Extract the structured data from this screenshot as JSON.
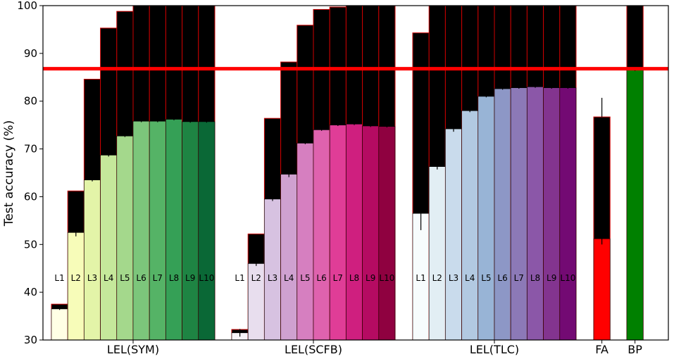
{
  "chart_data": {
    "type": "bar",
    "title": "",
    "xlabel": "",
    "ylabel": "Test accuracy (%)",
    "ylim": [
      30,
      100
    ],
    "yticks": [
      30,
      40,
      50,
      60,
      70,
      80,
      90,
      100
    ],
    "grid": false,
    "reference_line": {
      "value": 86.8,
      "color": "#ff0000"
    },
    "bar_edge_color": "#cc0000",
    "overlay_color": "#000000",
    "groups": [
      {
        "label": "LEL(SYM)",
        "layer_labels": [
          "L1",
          "L2",
          "L3",
          "L4",
          "L5",
          "L6",
          "L7",
          "L8",
          "L9",
          "L10"
        ],
        "colors": [
          "#ffffe5",
          "#f7fcb9",
          "#e3f4a8",
          "#c5e89b",
          "#a4d88c",
          "#7cc67b",
          "#55b366",
          "#35a056",
          "#1e8443",
          "#0a6836"
        ],
        "values": [
          36.5,
          52.5,
          63.5,
          68.7,
          72.7,
          75.8,
          75.8,
          76.2,
          75.7,
          75.7
        ],
        "upper": [
          37.5,
          61.2,
          84.6,
          95.3,
          98.8,
          100,
          100,
          100,
          100,
          100
        ],
        "error": [
          0.2,
          0.8,
          0.3,
          0.3,
          0.2,
          0.2,
          0.2,
          0.2,
          0.2,
          0.2
        ]
      },
      {
        "label": "LEL(SCFB)",
        "layer_labels": [
          "L1",
          "L2",
          "L3",
          "L4",
          "L5",
          "L6",
          "L7",
          "L8",
          "L9",
          "L10"
        ],
        "colors": [
          "#f7f4f9",
          "#e8deee",
          "#d7c2e1",
          "#cfa1d0",
          "#d67fc0",
          "#df62ae",
          "#e03d97",
          "#cf1f7f",
          "#b50b62",
          "#8f0140"
        ],
        "values": [
          31.5,
          46.0,
          59.5,
          64.7,
          71.2,
          74.0,
          75.0,
          75.2,
          74.8,
          74.7
        ],
        "upper": [
          32.2,
          52.2,
          76.4,
          88.2,
          95.9,
          99.2,
          99.7,
          100,
          100,
          100
        ],
        "error": [
          0.8,
          0.5,
          0.4,
          0.6,
          0.2,
          0.2,
          0.2,
          0.2,
          0.2,
          0.2
        ]
      },
      {
        "label": "LEL(TLC)",
        "layer_labels": [
          "L1",
          "L2",
          "L3",
          "L4",
          "L5",
          "L6",
          "L7",
          "L8",
          "L9",
          "L10"
        ],
        "colors": [
          "#f7fcfd",
          "#e2eef4",
          "#c9dbec",
          "#b2c9e1",
          "#98b4d6",
          "#8d97c6",
          "#8c79b7",
          "#8b57a8",
          "#83348f",
          "#730a73"
        ],
        "values": [
          56.5,
          66.3,
          74.2,
          78.0,
          81.0,
          82.6,
          82.8,
          83.0,
          82.8,
          82.8
        ],
        "upper": [
          94.3,
          100,
          100,
          100,
          100,
          100,
          100,
          100,
          100,
          100
        ],
        "error": [
          3.5,
          0.6,
          0.6,
          0.3,
          0.2,
          0.2,
          0.2,
          0.2,
          0.2,
          0.2
        ]
      },
      {
        "label": "FA",
        "layer_labels": [],
        "colors": [
          "#ff0000"
        ],
        "values": [
          51.2
        ],
        "upper": [
          76.7
        ],
        "error": [
          1.2
        ],
        "upper_error": 4.0
      },
      {
        "label": "BP",
        "layer_labels": [],
        "colors": [
          "#008000"
        ],
        "values": [
          86.5
        ],
        "upper": [
          100
        ],
        "error": [
          0.2
        ]
      }
    ]
  }
}
